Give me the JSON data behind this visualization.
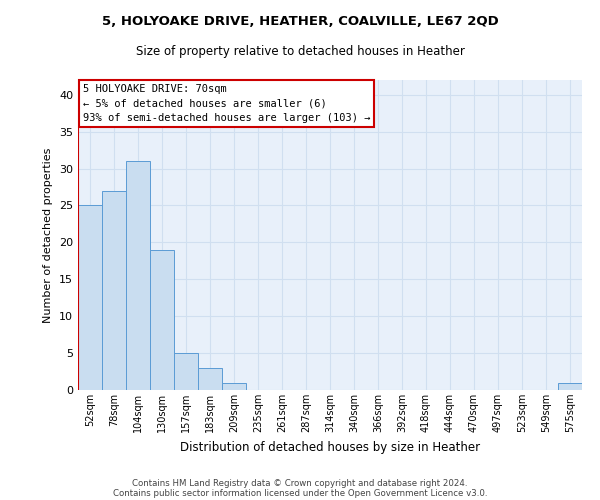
{
  "title1": "5, HOLYOAKE DRIVE, HEATHER, COALVILLE, LE67 2QD",
  "title2": "Size of property relative to detached houses in Heather",
  "xlabel": "Distribution of detached houses by size in Heather",
  "ylabel": "Number of detached properties",
  "categories": [
    "52sqm",
    "78sqm",
    "104sqm",
    "130sqm",
    "157sqm",
    "183sqm",
    "209sqm",
    "235sqm",
    "261sqm",
    "287sqm",
    "314sqm",
    "340sqm",
    "366sqm",
    "392sqm",
    "418sqm",
    "444sqm",
    "470sqm",
    "497sqm",
    "523sqm",
    "549sqm",
    "575sqm"
  ],
  "values": [
    25,
    27,
    31,
    19,
    5,
    3,
    1,
    0,
    0,
    0,
    0,
    0,
    0,
    0,
    0,
    0,
    0,
    0,
    0,
    0,
    1
  ],
  "bar_color": "#c9ddf0",
  "bar_edge_color": "#5b9bd5",
  "vline_color": "#cc0000",
  "annotation_line1": "5 HOLYOAKE DRIVE: 70sqm",
  "annotation_line2": "← 5% of detached houses are smaller (6)",
  "annotation_line3": "93% of semi-detached houses are larger (103) →",
  "annotation_box_color": "#cc0000",
  "ylim": [
    0,
    42
  ],
  "yticks": [
    0,
    5,
    10,
    15,
    20,
    25,
    30,
    35,
    40
  ],
  "grid_color": "#d0dff0",
  "bg_color": "#e8f0fa",
  "footer1": "Contains HM Land Registry data © Crown copyright and database right 2024.",
  "footer2": "Contains public sector information licensed under the Open Government Licence v3.0."
}
